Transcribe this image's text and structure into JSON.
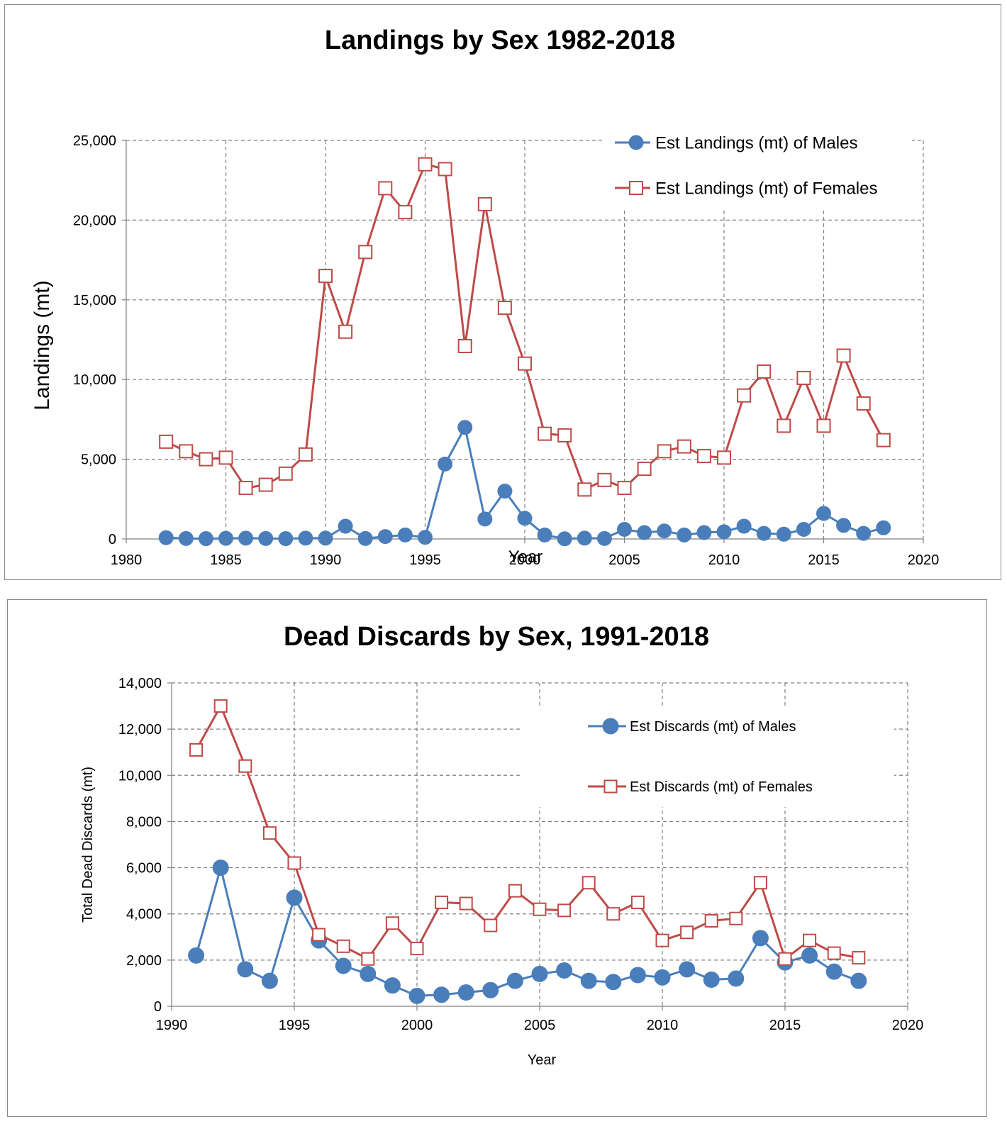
{
  "chart_data": [
    {
      "type": "line",
      "title": "Landings by Sex 1982-2018",
      "xlabel": "Year",
      "ylabel": "Landings (mt)",
      "xlim": [
        1980,
        2020
      ],
      "ylim": [
        0,
        25000
      ],
      "xticks": [
        1980,
        1985,
        1990,
        1995,
        2000,
        2005,
        2010,
        2015,
        2020
      ],
      "xtick_labels": [
        "1980",
        "1985",
        "1990",
        "1995",
        "2000",
        "2005",
        "2010",
        "2015",
        "2020"
      ],
      "yticks": [
        0,
        5000,
        10000,
        15000,
        20000,
        25000
      ],
      "ytick_labels": [
        "0",
        "5,000",
        "10,000",
        "15,000",
        "20,000",
        "25,000"
      ],
      "grid": true,
      "legend": "top-right",
      "series": [
        {
          "name": "Est Landings (mt) of Males",
          "color": "#4a7ebb",
          "marker": "circle-filled",
          "x": [
            1982,
            1983,
            1984,
            1985,
            1986,
            1987,
            1988,
            1989,
            1990,
            1991,
            1992,
            1993,
            1994,
            1995,
            1996,
            1997,
            1998,
            1999,
            2000,
            2001,
            2002,
            2003,
            2004,
            2005,
            2006,
            2007,
            2008,
            2009,
            2010,
            2011,
            2012,
            2013,
            2014,
            2015,
            2016,
            2017,
            2018
          ],
          "values": [
            80,
            30,
            20,
            40,
            50,
            30,
            20,
            50,
            50,
            800,
            30,
            150,
            250,
            100,
            4700,
            7000,
            1250,
            3000,
            1300,
            250,
            10,
            50,
            30,
            600,
            400,
            500,
            250,
            400,
            450,
            800,
            350,
            300,
            600,
            1600,
            850,
            350,
            700
          ]
        },
        {
          "name": "Est Landings (mt) of Females",
          "color": "#be4b48",
          "marker": "square-open",
          "x": [
            1982,
            1983,
            1984,
            1985,
            1986,
            1987,
            1988,
            1989,
            1990,
            1991,
            1992,
            1993,
            1994,
            1995,
            1996,
            1997,
            1998,
            1999,
            2000,
            2001,
            2002,
            2003,
            2004,
            2005,
            2006,
            2007,
            2008,
            2009,
            2010,
            2011,
            2012,
            2013,
            2014,
            2015,
            2016,
            2017,
            2018
          ],
          "values": [
            6100,
            5500,
            5000,
            5100,
            3200,
            3400,
            4100,
            5300,
            16500,
            13000,
            18000,
            22000,
            20500,
            23500,
            23200,
            12100,
            21000,
            14500,
            11000,
            6600,
            6500,
            3100,
            3700,
            3200,
            4400,
            5500,
            5800,
            5200,
            5100,
            9000,
            10500,
            7100,
            10100,
            7100,
            11500,
            8500,
            6200
          ]
        }
      ]
    },
    {
      "type": "line",
      "title": "Dead Discards by Sex, 1991-2018",
      "xlabel": "Year",
      "ylabel": "Total Dead Discards (mt)",
      "xlim": [
        1990,
        2020
      ],
      "ylim": [
        0,
        14000
      ],
      "xticks": [
        1990,
        1995,
        2000,
        2005,
        2010,
        2015,
        2020
      ],
      "xtick_labels": [
        "1990",
        "1995",
        "2000",
        "2005",
        "2010",
        "2015",
        "2020"
      ],
      "yticks": [
        0,
        2000,
        4000,
        6000,
        8000,
        10000,
        12000,
        14000
      ],
      "ytick_labels": [
        "0",
        "2,000",
        "4,000",
        "6,000",
        "8,000",
        "10,000",
        "12,000",
        "14,000"
      ],
      "grid": true,
      "legend": "top-right",
      "series": [
        {
          "name": "Est Discards (mt) of Males",
          "color": "#4a7ebb",
          "marker": "circle-filled",
          "x": [
            1991,
            1992,
            1993,
            1994,
            1995,
            1996,
            1997,
            1998,
            1999,
            2000,
            2001,
            2002,
            2003,
            2004,
            2005,
            2006,
            2007,
            2008,
            2009,
            2010,
            2011,
            2012,
            2013,
            2014,
            2015,
            2016,
            2017,
            2018
          ],
          "values": [
            2200,
            6000,
            1600,
            1100,
            4700,
            2850,
            1750,
            1400,
            900,
            450,
            500,
            600,
            700,
            1100,
            1400,
            1550,
            1100,
            1050,
            1350,
            1250,
            1600,
            1150,
            1200,
            2950,
            1900,
            2200,
            1500,
            1100
          ]
        },
        {
          "name": "Est Discards (mt) of Females",
          "color": "#be4b48",
          "marker": "square-open",
          "x": [
            1991,
            1992,
            1993,
            1994,
            1995,
            1996,
            1997,
            1998,
            1999,
            2000,
            2001,
            2002,
            2003,
            2004,
            2005,
            2006,
            2007,
            2008,
            2009,
            2010,
            2011,
            2012,
            2013,
            2014,
            2015,
            2016,
            2017,
            2018
          ],
          "values": [
            11100,
            13000,
            10400,
            7500,
            6200,
            3100,
            2600,
            2050,
            3600,
            2500,
            4500,
            4450,
            3500,
            5000,
            4200,
            4150,
            5350,
            4000,
            4500,
            2850,
            3200,
            3700,
            3800,
            5350,
            2050,
            2850,
            2300,
            2100
          ]
        }
      ]
    }
  ]
}
